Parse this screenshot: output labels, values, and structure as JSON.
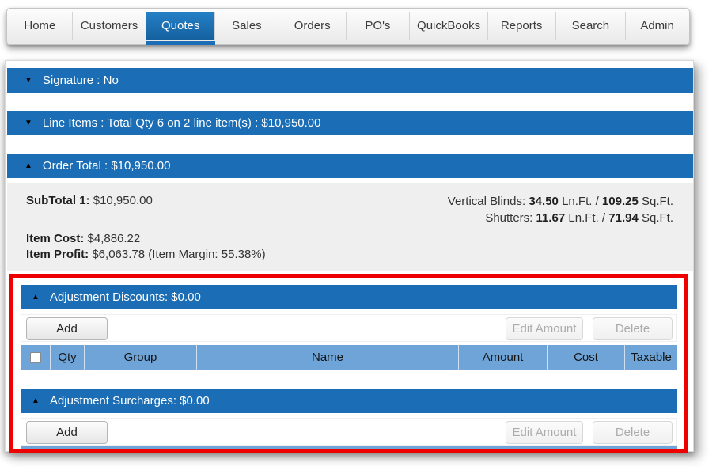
{
  "nav": {
    "tabs": [
      {
        "label": "Home"
      },
      {
        "label": "Customers"
      },
      {
        "label": "Quotes",
        "active": true
      },
      {
        "label": "Sales"
      },
      {
        "label": "Orders"
      },
      {
        "label": "PO's"
      },
      {
        "label": "QuickBooks"
      },
      {
        "label": "Reports"
      },
      {
        "label": "Search"
      },
      {
        "label": "Admin"
      }
    ]
  },
  "icons": {
    "collapsed": "▼",
    "expanded": "▲"
  },
  "colors": {
    "accent_blue": "#1b6eb5",
    "table_header_blue": "#6fa4d8",
    "annotation_red": "#ee0000"
  },
  "panels": {
    "signature": {
      "title": "Signature : No",
      "state": "collapsed"
    },
    "line_items": {
      "title": "Line Items : Total Qty 6 on 2 line item(s) : $10,950.00",
      "state": "collapsed"
    },
    "order_total": {
      "title": "Order Total : $10,950.00",
      "state": "expanded",
      "subtotal_label": "SubTotal 1:",
      "subtotal_value": "$10,950.00",
      "item_cost_label": "Item Cost:",
      "item_cost_value": "$4,886.22",
      "item_profit_label": "Item Profit:",
      "item_profit_value": "$6,063.78 (Item Margin: 55.38%)",
      "measurements": [
        {
          "label": "Vertical Blinds:",
          "lnft": "34.50",
          "lnft_unit": "Ln.Ft. /",
          "sqft": "109.25",
          "sqft_unit": "Sq.Ft."
        },
        {
          "label": "Shutters:",
          "lnft": "11.67",
          "lnft_unit": "Ln.Ft. /",
          "sqft": "71.94",
          "sqft_unit": "Sq.Ft."
        }
      ]
    },
    "adjustment_discounts": {
      "title": "Adjustment Discounts: $0.00",
      "state": "expanded",
      "add_label": "Add",
      "edit_amount_label": "Edit Amount",
      "delete_label": "Delete",
      "columns": [
        "Qty",
        "Group",
        "Name",
        "Amount",
        "Cost",
        "Taxable"
      ]
    },
    "adjustment_surcharges": {
      "title": "Adjustment Surcharges: $0.00",
      "state": "expanded",
      "add_label": "Add",
      "edit_amount_label": "Edit Amount",
      "delete_label": "Delete"
    }
  }
}
